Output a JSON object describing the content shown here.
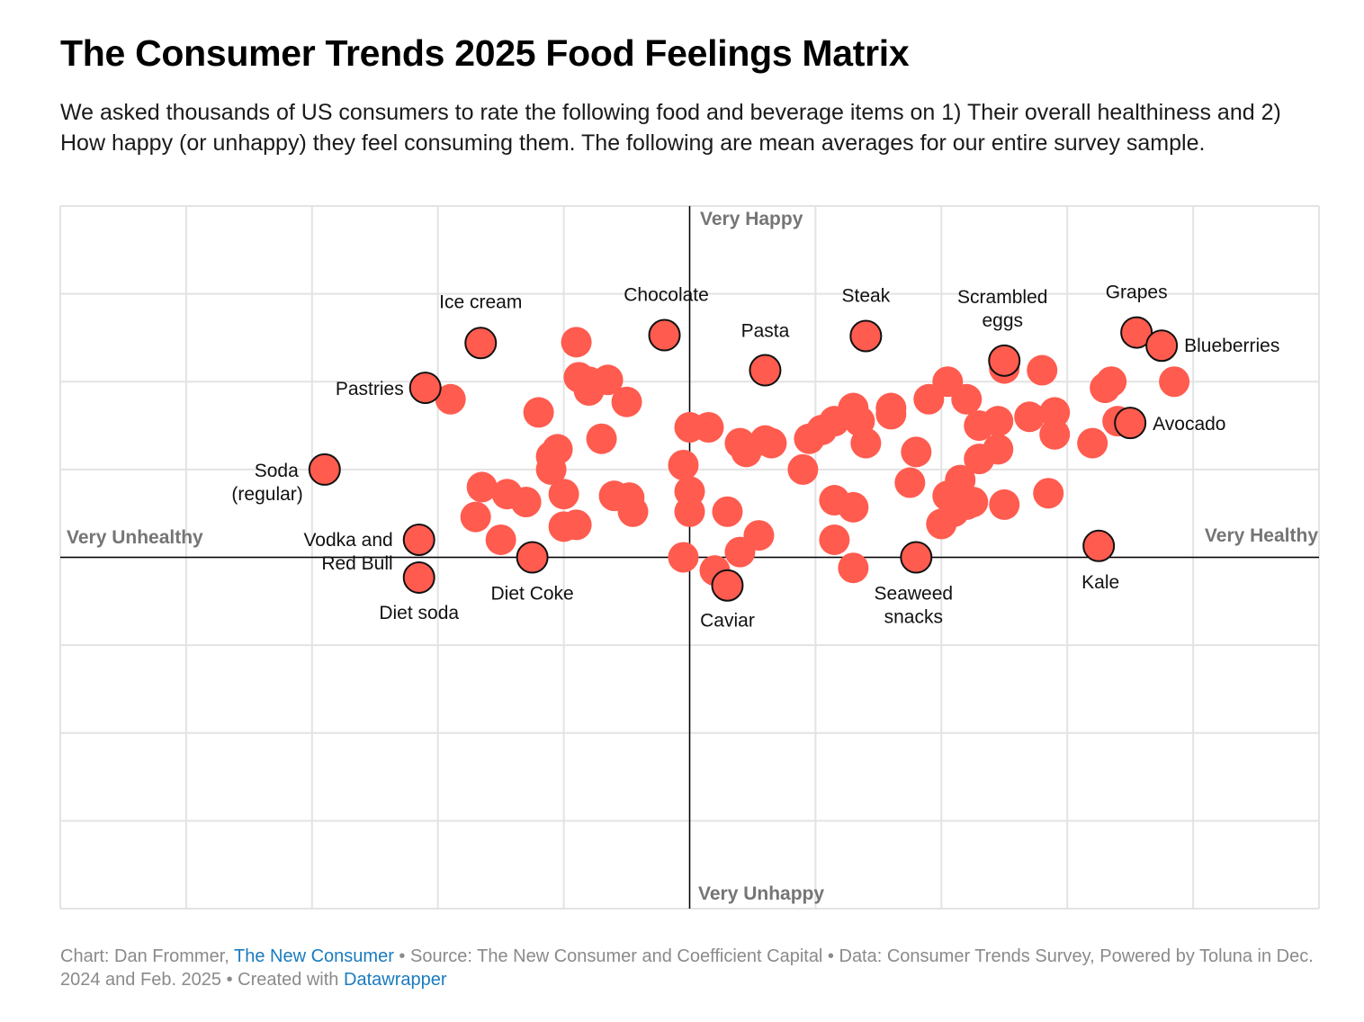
{
  "title": "The Consumer Trends 2025 Food Feelings Matrix",
  "subtitle": "We asked thousands of US consumers to rate the following food and beverage items on 1) Their overall healthiness and 2) How happy (or unhappy) they feel consuming them. The following are mean averages for our entire survey sample.",
  "footer": {
    "prefix": "Chart: Dan Frommer, ",
    "publisher": "The New Consumer",
    "middle": " • Source: The New Consumer and Coefficient Capital • Data: Consumer Trends Survey, Powered by Toluna in Dec. 2024 and Feb. 2025 • Created with ",
    "tool": "Datawrapper"
  },
  "colors": {
    "dot": "#ff5b4f",
    "outline": "#111111",
    "grid": "#e3e3e3",
    "axis_label": "#757575",
    "link": "#1a7bbf"
  },
  "chart_data": {
    "type": "scatter",
    "xlim": [
      -5,
      5
    ],
    "ylim": [
      -4,
      4
    ],
    "grid": true,
    "axis_labels": {
      "left": "Very Unhealthy",
      "right": "Very Healthy",
      "top": "Very Happy",
      "bottom": "Very Unhappy"
    },
    "labeled_points": [
      {
        "label": "Ice cream",
        "x": -1.66,
        "y": 2.44
      },
      {
        "label": "Chocolate",
        "x": -0.2,
        "y": 2.53
      },
      {
        "label": "Pasta",
        "x": 0.6,
        "y": 2.13
      },
      {
        "label": "Steak",
        "x": 1.4,
        "y": 2.52
      },
      {
        "label": "Scrambled eggs",
        "x": 2.5,
        "y": 2.24
      },
      {
        "label": "Grapes",
        "x": 3.55,
        "y": 2.56
      },
      {
        "label": "Blueberries",
        "x": 3.75,
        "y": 2.41
      },
      {
        "label": "Pastries",
        "x": -2.1,
        "y": 1.93
      },
      {
        "label": "Avocado",
        "x": 3.5,
        "y": 1.53
      },
      {
        "label": "Soda (regular)",
        "x": -2.9,
        "y": 1.0
      },
      {
        "label": "Vodka and Red Bull",
        "x": -2.15,
        "y": 0.2
      },
      {
        "label": "Diet soda",
        "x": -2.15,
        "y": -0.23
      },
      {
        "label": "Diet Coke",
        "x": -1.25,
        "y": 0.0
      },
      {
        "label": "Caviar",
        "x": 0.3,
        "y": -0.32
      },
      {
        "label": "Seaweed snacks",
        "x": 1.8,
        "y": 0.0
      },
      {
        "label": "Kale",
        "x": 3.25,
        "y": 0.13
      }
    ],
    "other_points": [
      [
        -0.9,
        2.45
      ],
      [
        -0.88,
        2.05
      ],
      [
        -0.8,
        2.0
      ],
      [
        -0.65,
        2.02
      ],
      [
        -0.8,
        1.9
      ],
      [
        -0.5,
        1.77
      ],
      [
        -1.9,
        1.8
      ],
      [
        -1.2,
        1.65
      ],
      [
        -0.7,
        1.35
      ],
      [
        -1.05,
        1.23
      ],
      [
        -1.1,
        1.15
      ],
      [
        -1.1,
        1.0
      ],
      [
        -1.65,
        0.8
      ],
      [
        -1.45,
        0.72
      ],
      [
        -1.3,
        0.63
      ],
      [
        -1.0,
        0.72
      ],
      [
        -0.6,
        0.7
      ],
      [
        -0.48,
        0.68
      ],
      [
        -0.45,
        0.52
      ],
      [
        -1.7,
        0.46
      ],
      [
        -1.5,
        0.2
      ],
      [
        -1.0,
        0.35
      ],
      [
        -0.9,
        0.37
      ],
      [
        -0.05,
        1.05
      ],
      [
        0.0,
        0.75
      ],
      [
        0.0,
        0.52
      ],
      [
        -0.05,
        0.0
      ],
      [
        0.0,
        1.48
      ],
      [
        0.15,
        1.48
      ],
      [
        0.3,
        0.52
      ],
      [
        0.4,
        1.3
      ],
      [
        0.45,
        1.2
      ],
      [
        0.6,
        1.33
      ],
      [
        0.65,
        1.3
      ],
      [
        0.55,
        0.25
      ],
      [
        0.4,
        0.06
      ],
      [
        0.2,
        -0.15
      ],
      [
        0.9,
        1.0
      ],
      [
        0.95,
        1.35
      ],
      [
        1.05,
        1.45
      ],
      [
        1.15,
        1.55
      ],
      [
        1.3,
        1.7
      ],
      [
        1.35,
        1.55
      ],
      [
        1.4,
        1.3
      ],
      [
        1.6,
        1.7
      ],
      [
        1.6,
        1.63
      ],
      [
        1.15,
        0.65
      ],
      [
        1.3,
        0.57
      ],
      [
        1.15,
        0.2
      ],
      [
        1.3,
        -0.12
      ],
      [
        1.8,
        1.2
      ],
      [
        1.75,
        0.85
      ],
      [
        1.9,
        1.8
      ],
      [
        2.05,
        2.0
      ],
      [
        2.2,
        1.8
      ],
      [
        2.3,
        1.5
      ],
      [
        2.45,
        1.55
      ],
      [
        2.3,
        1.12
      ],
      [
        2.45,
        1.23
      ],
      [
        2.15,
        0.88
      ],
      [
        2.15,
        0.72
      ],
      [
        2.05,
        0.7
      ],
      [
        2.2,
        0.6
      ],
      [
        2.25,
        0.63
      ],
      [
        2.1,
        0.52
      ],
      [
        2.0,
        0.38
      ],
      [
        2.5,
        0.6
      ],
      [
        2.5,
        2.15
      ],
      [
        2.8,
        2.13
      ],
      [
        2.7,
        1.6
      ],
      [
        2.9,
        1.65
      ],
      [
        2.9,
        1.4
      ],
      [
        2.85,
        0.73
      ],
      [
        3.2,
        1.3
      ],
      [
        3.3,
        1.93
      ],
      [
        3.35,
        2.0
      ],
      [
        3.4,
        1.55
      ],
      [
        3.85,
        2.0
      ]
    ]
  }
}
